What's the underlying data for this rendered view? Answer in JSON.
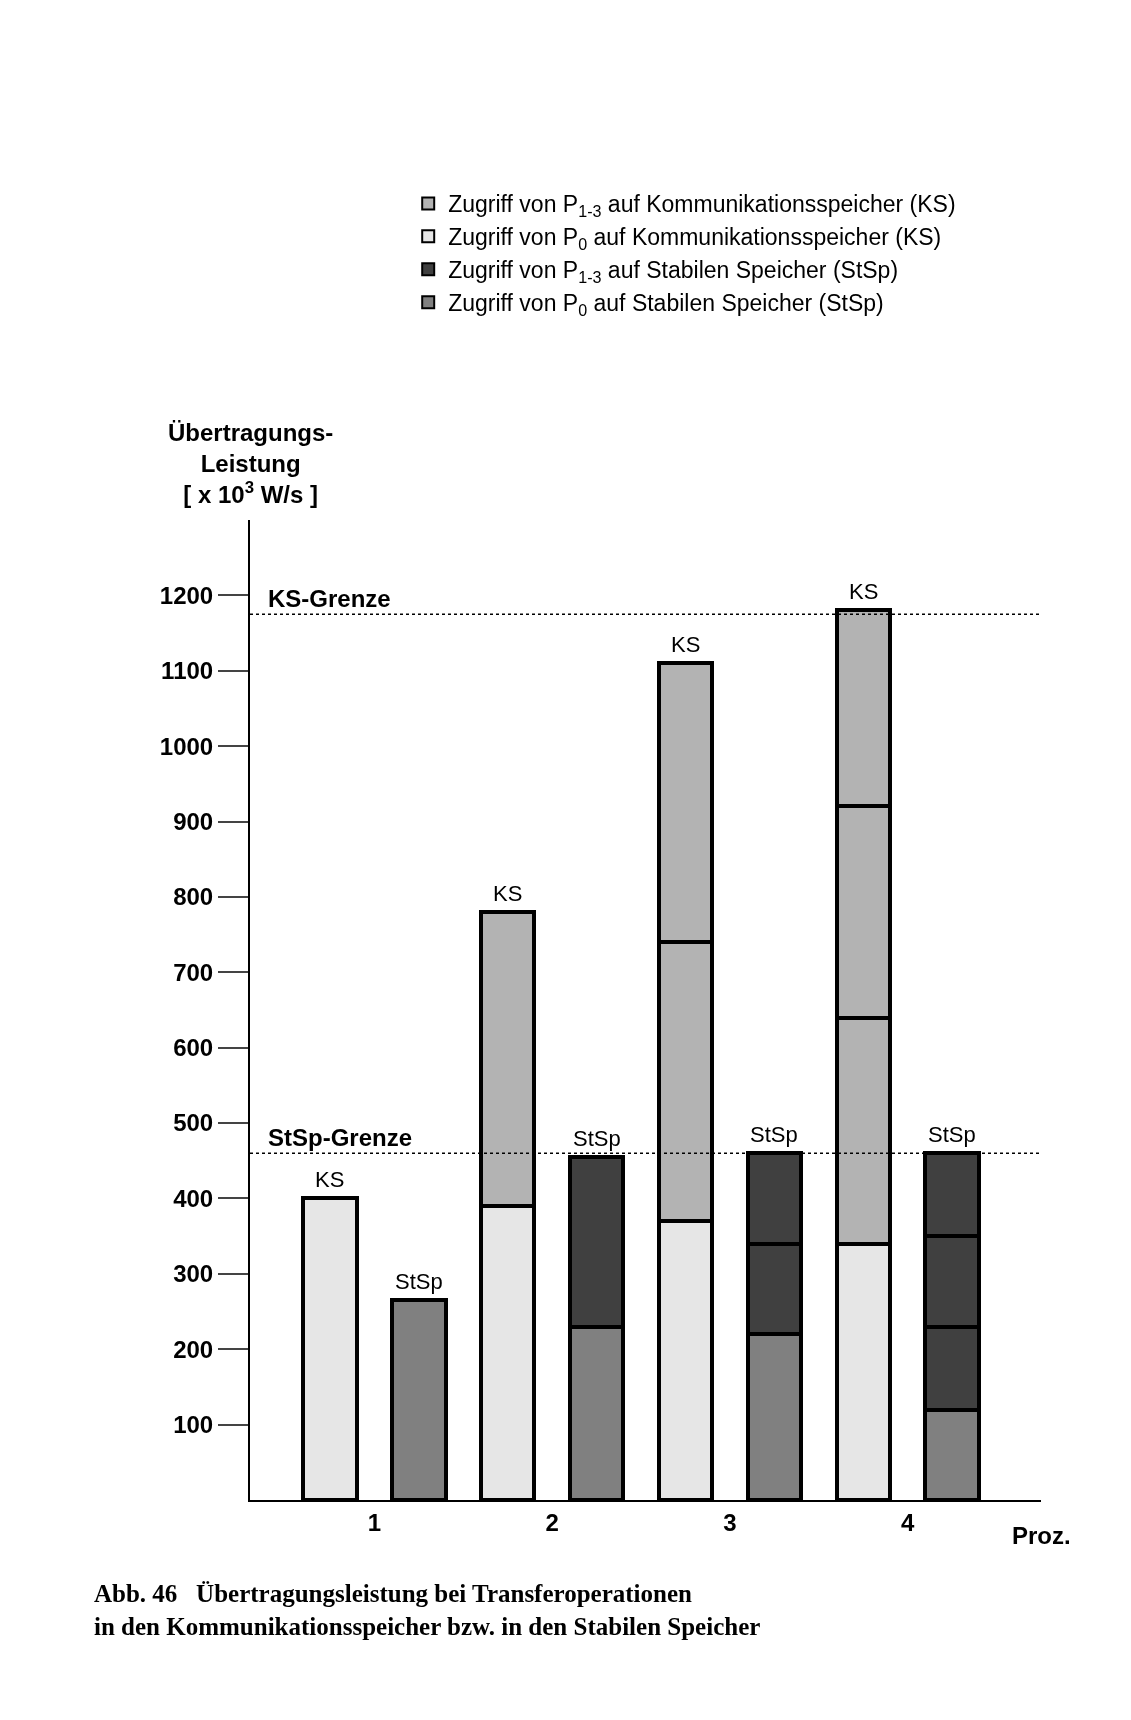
{
  "chart_data": {
    "type": "bar",
    "stacked": true,
    "xlabel": "Proz.",
    "ylabel": "Übertragungs-\nLeistung\n[ x 10$^{3}$ W/s ]",
    "annotations": [
      "Abb. 46   Übertragungsleistung bei Transferoperationen\nin den Kommunikationsspeicher bzw. in den Stabilen Speicher"
    ],
    "x": [
      0.75,
      1.25,
      1.75,
      2.25,
      2.75,
      3.25,
      3.75,
      4.25
    ],
    "series": [
      {
        "name": "Zugriff von P$_{0}$ auf Kommunikationsspeicher (KS)",
        "color": "#e6e6e6",
        "values": [
          400,
          null,
          390,
          null,
          370,
          null,
          340,
          null
        ],
        "value_labels": [
          "KS",
          null,
          null,
          null,
          null,
          null,
          null,
          null
        ]
      },
      {
        "name": "Zugriff von P$_{1-3}$ auf Kommunikationsspeicher (KS)",
        "color": "#b3b3b3",
        "values": [
          null,
          null,
          390,
          null,
          370,
          null,
          300,
          null
        ],
        "value_labels": [
          null,
          null,
          "KS",
          null,
          null,
          null,
          null,
          null
        ]
      },
      {
        "color": "#b3b3b3",
        "values": [
          null,
          null,
          null,
          null,
          370,
          null,
          280,
          null
        ],
        "value_labels": [
          null,
          null,
          null,
          null,
          "KS",
          null,
          null,
          null
        ]
      },
      {
        "color": "#b3b3b3",
        "values": [
          null,
          null,
          null,
          null,
          null,
          null,
          260,
          null
        ],
        "value_labels": [
          null,
          null,
          null,
          null,
          null,
          null,
          "KS",
          null
        ]
      },
      {
        "name": "Zugriff von P$_{0}$ auf Stabilen Speicher (StSp)",
        "color": "#808080",
        "values": [
          null,
          265,
          null,
          230,
          null,
          220,
          null,
          120
        ],
        "value_labels": [
          null,
          "StSp",
          null,
          null,
          null,
          null,
          null,
          null
        ]
      },
      {
        "name": "Zugriff von P$_{1-3}$ auf Stabilen Speicher (StSp)",
        "color": "#404040",
        "values": [
          null,
          null,
          null,
          225,
          null,
          120,
          null,
          110
        ],
        "value_labels": [
          null,
          null,
          null,
          "StSp",
          null,
          null,
          null,
          null
        ]
      },
      {
        "color": "#404040",
        "values": [
          null,
          null,
          null,
          null,
          null,
          120,
          null,
          120
        ],
        "value_labels": [
          null,
          null,
          null,
          null,
          null,
          "StSp",
          null,
          null
        ]
      },
      {
        "color": "#404040",
        "values": [
          null,
          null,
          null,
          null,
          null,
          null,
          null,
          110
        ],
        "value_labels": [
          null,
          null,
          null,
          null,
          null,
          null,
          null,
          "StSp"
        ]
      }
    ],
    "xlim": [
      0.3,
      4.75
    ],
    "xticks": [
      1,
      2,
      3,
      4
    ],
    "ylim": [
      0,
      1300
    ],
    "yticks": [
      100,
      200,
      300,
      400,
      500,
      600,
      700,
      800,
      900,
      1000,
      1100,
      1200
    ],
    "ref_lines": [
      {
        "axis": "y",
        "value": 1175,
        "label": "KS-Grenze",
        "line_style": "dotted"
      },
      {
        "axis": "y",
        "value": 460,
        "label": "StSp-Grenze",
        "line_style": "dotted"
      }
    ],
    "legend": "top"
  }
}
